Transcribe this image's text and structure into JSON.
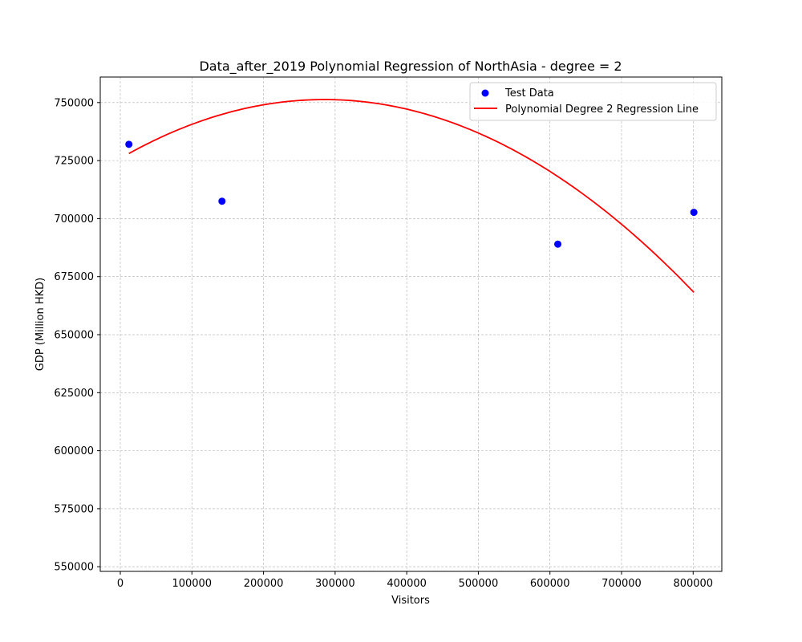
{
  "chart_data": {
    "type": "scatter",
    "title": "Data_after_2019 Polynomial Regression of NorthAsia - degree = 2",
    "xlabel": "Visitors",
    "ylabel": "GDP (Million HKD)",
    "xlim": [
      -28000,
      840000
    ],
    "ylim": [
      548000,
      761000
    ],
    "xticks": [
      0,
      100000,
      200000,
      300000,
      400000,
      500000,
      600000,
      700000,
      800000
    ],
    "xtick_labels": [
      "0",
      "100000",
      "200000",
      "300000",
      "400000",
      "500000",
      "600000",
      "700000",
      "800000"
    ],
    "yticks": [
      550000,
      575000,
      600000,
      625000,
      650000,
      675000,
      700000,
      725000,
      750000
    ],
    "ytick_labels": [
      "550000",
      "575000",
      "600000",
      "625000",
      "650000",
      "675000",
      "700000",
      "725000",
      "750000"
    ],
    "grid": true,
    "legend_position": "top-right",
    "series": [
      {
        "name": "Test Data",
        "kind": "scatter",
        "color": "#0000ff",
        "x": [
          12000,
          142000,
          611000,
          801000
        ],
        "y": [
          732000,
          707500,
          689000,
          702700
        ]
      },
      {
        "name": "Polynomial Degree 2 Regression Line",
        "kind": "line",
        "color": "#ff0000",
        "fit": "quadratic",
        "x_range": [
          12000,
          801000
        ],
        "vertex": [
          285000,
          751300
        ],
        "coefficient_a": -3.12e-07
      }
    ]
  }
}
